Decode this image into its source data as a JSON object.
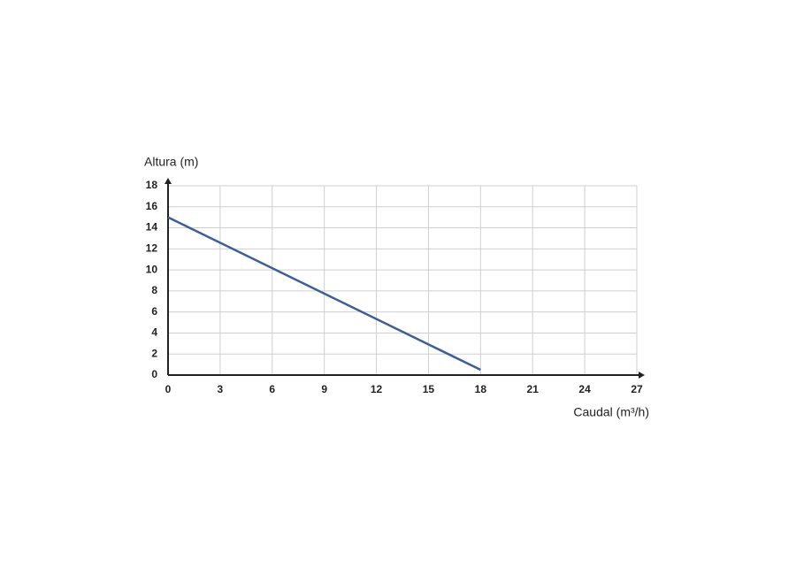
{
  "chart_data": {
    "type": "line",
    "y_label": "Altura (m)",
    "x_label": "Caudal (m³/h)",
    "series": [
      {
        "color": "#3d5f98",
        "x": [
          0,
          18
        ],
        "values": [
          15,
          0.5
        ]
      }
    ],
    "xlim": [
      0,
      27
    ],
    "xticks": [
      0,
      3,
      6,
      9,
      12,
      15,
      18,
      21,
      24,
      27
    ],
    "ylim": [
      0,
      18
    ],
    "yticks": [
      0,
      2,
      4,
      6,
      8,
      10,
      12,
      14,
      16,
      18
    ],
    "grid": true
  }
}
